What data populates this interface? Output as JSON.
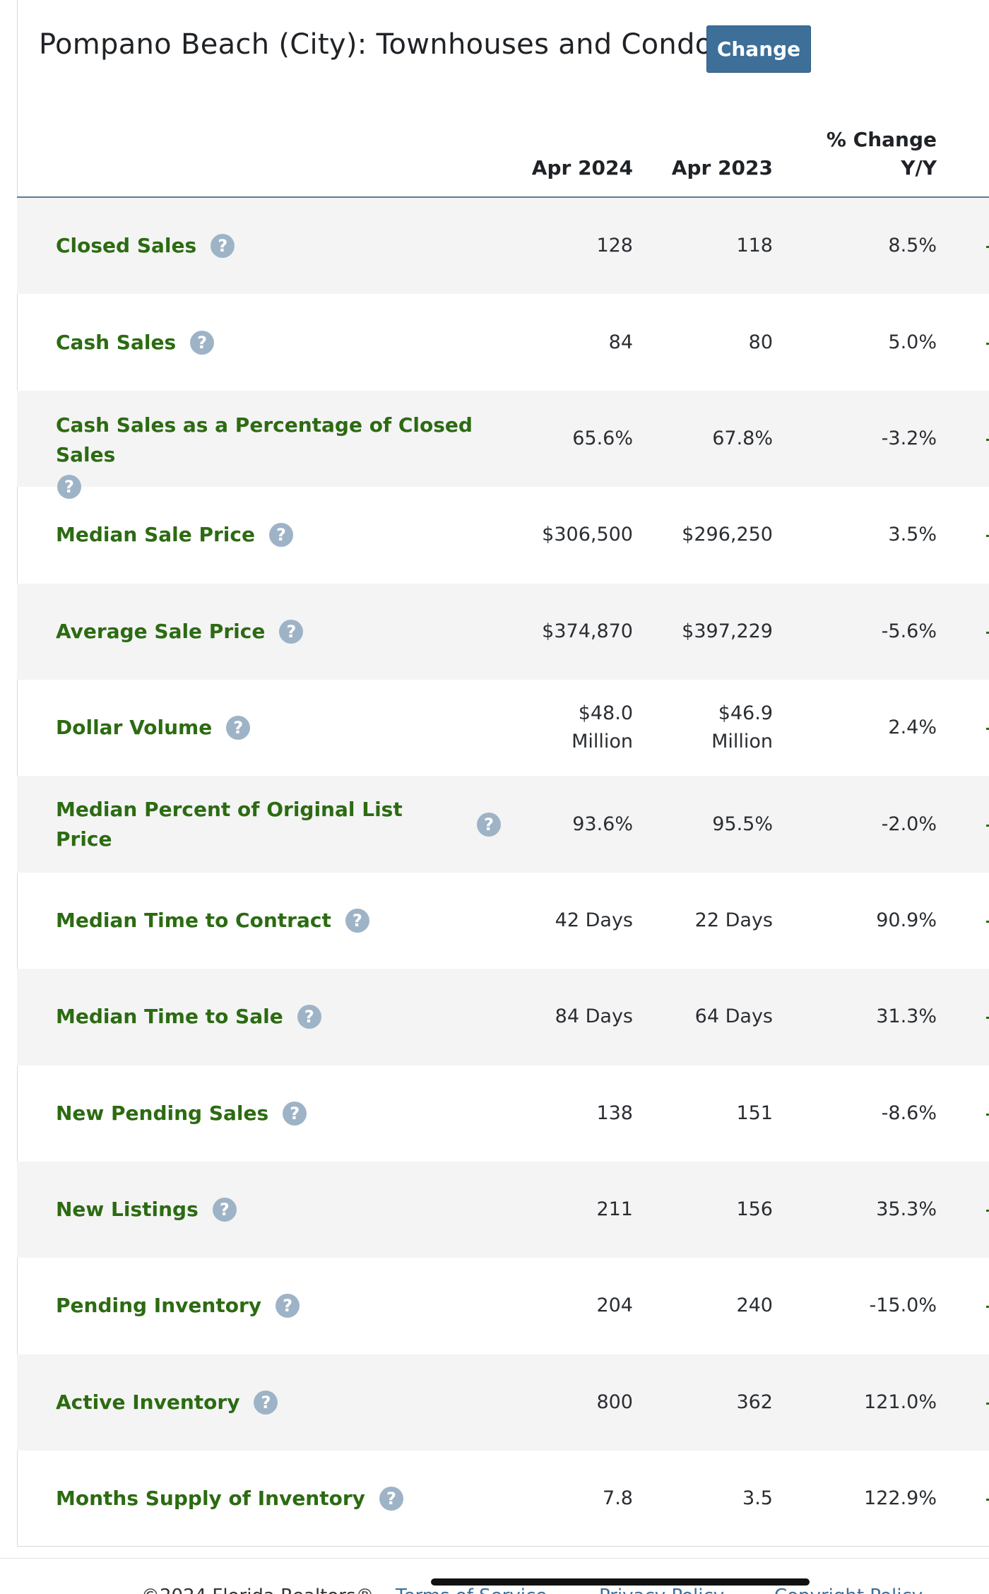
{
  "header": {
    "title": "Pompano Beach (City): Townhouses and Condos",
    "change_label": "Change"
  },
  "columns": {
    "current": "Apr 2024",
    "previous": "Apr 2023",
    "change_line1": "% Change",
    "change_line2": "Y/Y"
  },
  "rows": [
    {
      "label": "Closed Sales",
      "current": "128",
      "previous": "118",
      "change": "8.5%"
    },
    {
      "label": "Cash Sales",
      "current": "84",
      "previous": "80",
      "change": "5.0%"
    },
    {
      "label": "Cash Sales as a Percentage of Closed Sales",
      "current": "65.6%",
      "previous": "67.8%",
      "change": "-3.2%"
    },
    {
      "label": "Median Sale Price",
      "current": "$306,500",
      "previous": "$296,250",
      "change": "3.5%"
    },
    {
      "label": "Average Sale Price",
      "current": "$374,870",
      "previous": "$397,229",
      "change": "-5.6%"
    },
    {
      "label": "Dollar Volume",
      "current": "$48.0 Million",
      "previous": "$46.9 Million",
      "change": "2.4%"
    },
    {
      "label": "Median Percent of Original List Price",
      "current": "93.6%",
      "previous": "95.5%",
      "change": "-2.0%"
    },
    {
      "label": "Median Time to Contract",
      "current": "42 Days",
      "previous": "22 Days",
      "change": "90.9%"
    },
    {
      "label": "Median Time to Sale",
      "current": "84 Days",
      "previous": "64 Days",
      "change": "31.3%"
    },
    {
      "label": "New Pending Sales",
      "current": "138",
      "previous": "151",
      "change": "-8.6%"
    },
    {
      "label": "New Listings",
      "current": "211",
      "previous": "156",
      "change": "35.3%"
    },
    {
      "label": "Pending Inventory",
      "current": "204",
      "previous": "240",
      "change": "-15.0%"
    },
    {
      "label": "Active Inventory",
      "current": "800",
      "previous": "362",
      "change": "121.0%"
    },
    {
      "label": "Months Supply of Inventory",
      "current": "7.8",
      "previous": "3.5",
      "change": "122.9%"
    }
  ],
  "help_icon": "question-icon",
  "footer": {
    "copyright": "©2024 Florida Realtors®",
    "links": [
      "Terms of Service",
      "Privacy Policy",
      "Copyright Policy"
    ]
  }
}
